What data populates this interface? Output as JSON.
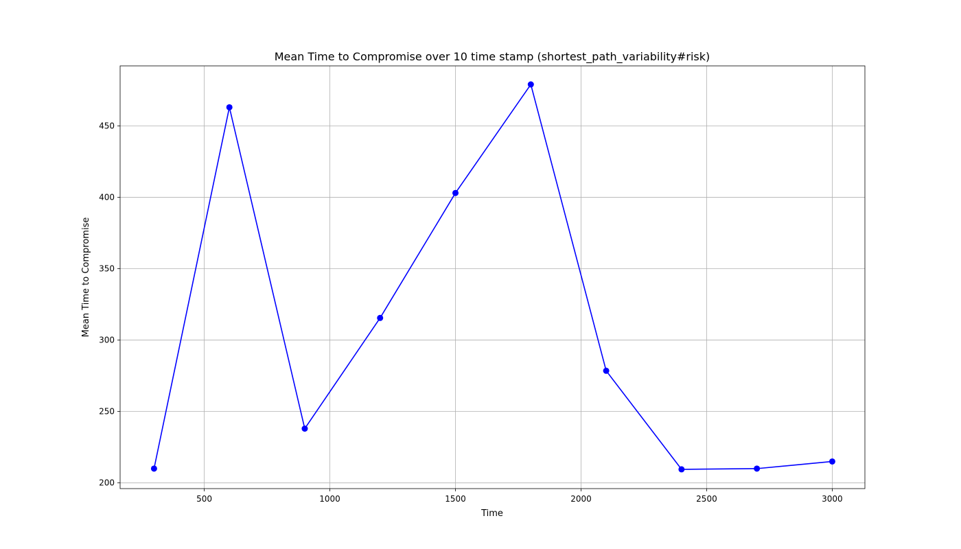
{
  "chart_data": {
    "type": "line",
    "title": "Mean Time to Compromise over 10 time stamp (shortest_path_variability#risk)",
    "xlabel": "Time",
    "ylabel": "Mean Time to Compromise",
    "xlim": [
      165,
      3130
    ],
    "ylim": [
      196,
      492
    ],
    "xticks": [
      500,
      1000,
      1500,
      2000,
      2500,
      3000
    ],
    "yticks": [
      200,
      250,
      300,
      350,
      400,
      450
    ],
    "grid": true,
    "series": [
      {
        "color": "#0000ff",
        "marker": "circle",
        "points": [
          {
            "x": 300,
            "y": 210
          },
          {
            "x": 600,
            "y": 463
          },
          {
            "x": 900,
            "y": 238
          },
          {
            "x": 1200,
            "y": 315.5
          },
          {
            "x": 1500,
            "y": 403
          },
          {
            "x": 1800,
            "y": 479
          },
          {
            "x": 2100,
            "y": 278.5
          },
          {
            "x": 2400,
            "y": 209.5
          },
          {
            "x": 2700,
            "y": 210
          },
          {
            "x": 3000,
            "y": 215
          }
        ]
      }
    ]
  }
}
